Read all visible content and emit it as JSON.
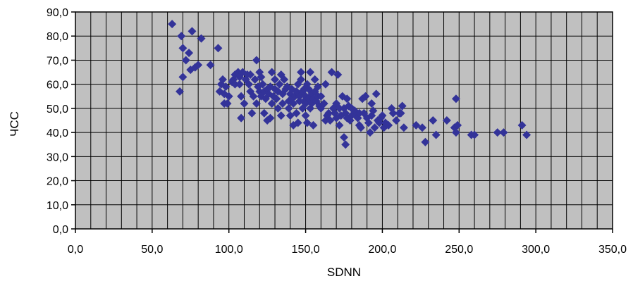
{
  "chart_data": {
    "type": "scatter",
    "title": "",
    "xlabel": "SDNN",
    "ylabel": "ЧСС",
    "xlim": [
      0,
      350
    ],
    "ylim": [
      0,
      90
    ],
    "x_ticks": [
      "0,0",
      "50,0",
      "100,0",
      "150,0",
      "200,0",
      "250,0",
      "300,0",
      "350,0"
    ],
    "y_ticks": [
      "0,0",
      "10,0",
      "20,0",
      "30,0",
      "40,0",
      "50,0",
      "60,0",
      "70,0",
      "80,0",
      "90,0"
    ],
    "x_minor_step": 10,
    "y_minor_step": 10,
    "grid": true,
    "legend": "none",
    "colors": {
      "plot_background": "#c0c0c0",
      "grid": "#000000",
      "marker": "#333399"
    },
    "marker": "diamond",
    "series": [
      {
        "points": [
          [
            63,
            85
          ],
          [
            68,
            57
          ],
          [
            69,
            80
          ],
          [
            70,
            63
          ],
          [
            70,
            75
          ],
          [
            72,
            70
          ],
          [
            74,
            73
          ],
          [
            75,
            66
          ],
          [
            76,
            82
          ],
          [
            78,
            67
          ],
          [
            80,
            68
          ],
          [
            82,
            79
          ],
          [
            88,
            68
          ],
          [
            93,
            75
          ],
          [
            94,
            57
          ],
          [
            95,
            60
          ],
          [
            96,
            62
          ],
          [
            97,
            52
          ],
          [
            97,
            56
          ],
          [
            98,
            59
          ],
          [
            99,
            52
          ],
          [
            100,
            55
          ],
          [
            102,
            61
          ],
          [
            103,
            62
          ],
          [
            104,
            60
          ],
          [
            104,
            64
          ],
          [
            106,
            65
          ],
          [
            107,
            63
          ],
          [
            107,
            60
          ],
          [
            108,
            55
          ],
          [
            108,
            46
          ],
          [
            109,
            65
          ],
          [
            110,
            52
          ],
          [
            111,
            62
          ],
          [
            112,
            64
          ],
          [
            113,
            60
          ],
          [
            114,
            57
          ],
          [
            114,
            64
          ],
          [
            115,
            48
          ],
          [
            116,
            55
          ],
          [
            117,
            62
          ],
          [
            118,
            70
          ],
          [
            118,
            52
          ],
          [
            119,
            59
          ],
          [
            120,
            57
          ],
          [
            120,
            65
          ],
          [
            121,
            63
          ],
          [
            121,
            55
          ],
          [
            122,
            60
          ],
          [
            123,
            57
          ],
          [
            123,
            48
          ],
          [
            124,
            54
          ],
          [
            125,
            45
          ],
          [
            125,
            58
          ],
          [
            126,
            56
          ],
          [
            127,
            59
          ],
          [
            127,
            46
          ],
          [
            128,
            52
          ],
          [
            128,
            65
          ],
          [
            129,
            55
          ],
          [
            130,
            58
          ],
          [
            130,
            62
          ],
          [
            131,
            54
          ],
          [
            132,
            57
          ],
          [
            132,
            50
          ],
          [
            133,
            60
          ],
          [
            134,
            64
          ],
          [
            134,
            47
          ],
          [
            135,
            56
          ],
          [
            135,
            52
          ],
          [
            136,
            62
          ],
          [
            137,
            58
          ],
          [
            138,
            59
          ],
          [
            139,
            53
          ],
          [
            139,
            50
          ],
          [
            140,
            56
          ],
          [
            140,
            47
          ],
          [
            141,
            54
          ],
          [
            141,
            58
          ],
          [
            142,
            52
          ],
          [
            142,
            43
          ],
          [
            143,
            55
          ],
          [
            144,
            57
          ],
          [
            144,
            48
          ],
          [
            145,
            44
          ],
          [
            145,
            60
          ],
          [
            146,
            53
          ],
          [
            146,
            55
          ],
          [
            147,
            62
          ],
          [
            147,
            65
          ],
          [
            148,
            50
          ],
          [
            148,
            57
          ],
          [
            149,
            53
          ],
          [
            149,
            58
          ],
          [
            150,
            52
          ],
          [
            150,
            55
          ],
          [
            150,
            47
          ],
          [
            151,
            44
          ],
          [
            151,
            60
          ],
          [
            152,
            54
          ],
          [
            152,
            58
          ],
          [
            153,
            50
          ],
          [
            153,
            65
          ],
          [
            154,
            56
          ],
          [
            154,
            52
          ],
          [
            155,
            54
          ],
          [
            155,
            43
          ],
          [
            156,
            57
          ],
          [
            156,
            62
          ],
          [
            157,
            53
          ],
          [
            158,
            55
          ],
          [
            158,
            59
          ],
          [
            159,
            51
          ],
          [
            160,
            50
          ],
          [
            160,
            55
          ],
          [
            162,
            52
          ],
          [
            163,
            45
          ],
          [
            163,
            60
          ],
          [
            164,
            47
          ],
          [
            165,
            48
          ],
          [
            166,
            45
          ],
          [
            167,
            65
          ],
          [
            168,
            50
          ],
          [
            169,
            48
          ],
          [
            170,
            46
          ],
          [
            170,
            52
          ],
          [
            171,
            64
          ],
          [
            172,
            50
          ],
          [
            172,
            43
          ],
          [
            173,
            47
          ],
          [
            174,
            55
          ],
          [
            175,
            50
          ],
          [
            175,
            38
          ],
          [
            176,
            35
          ],
          [
            176,
            48
          ],
          [
            177,
            54
          ],
          [
            177,
            46
          ],
          [
            178,
            51
          ],
          [
            179,
            45
          ],
          [
            180,
            50
          ],
          [
            180,
            47
          ],
          [
            182,
            49
          ],
          [
            183,
            47
          ],
          [
            184,
            46
          ],
          [
            185,
            43
          ],
          [
            185,
            48
          ],
          [
            186,
            42
          ],
          [
            187,
            54
          ],
          [
            188,
            48
          ],
          [
            189,
            55
          ],
          [
            190,
            46
          ],
          [
            191,
            44
          ],
          [
            192,
            40
          ],
          [
            193,
            52
          ],
          [
            193,
            47
          ],
          [
            194,
            49
          ],
          [
            195,
            42
          ],
          [
            196,
            56
          ],
          [
            197,
            45
          ],
          [
            198,
            44
          ],
          [
            199,
            46
          ],
          [
            200,
            47
          ],
          [
            201,
            42
          ],
          [
            202,
            44
          ],
          [
            204,
            43
          ],
          [
            206,
            50
          ],
          [
            207,
            48
          ],
          [
            209,
            45
          ],
          [
            211,
            48
          ],
          [
            212,
            48
          ],
          [
            213,
            51
          ],
          [
            214,
            42
          ],
          [
            222,
            43
          ],
          [
            226,
            42
          ],
          [
            228,
            36
          ],
          [
            233,
            45
          ],
          [
            235,
            39
          ],
          [
            242,
            45
          ],
          [
            247,
            42
          ],
          [
            248,
            54
          ],
          [
            248,
            40
          ],
          [
            249,
            43
          ],
          [
            258,
            39
          ],
          [
            260,
            39
          ],
          [
            275,
            40
          ],
          [
            279,
            40
          ],
          [
            291,
            43
          ],
          [
            294,
            39
          ]
        ]
      }
    ]
  }
}
